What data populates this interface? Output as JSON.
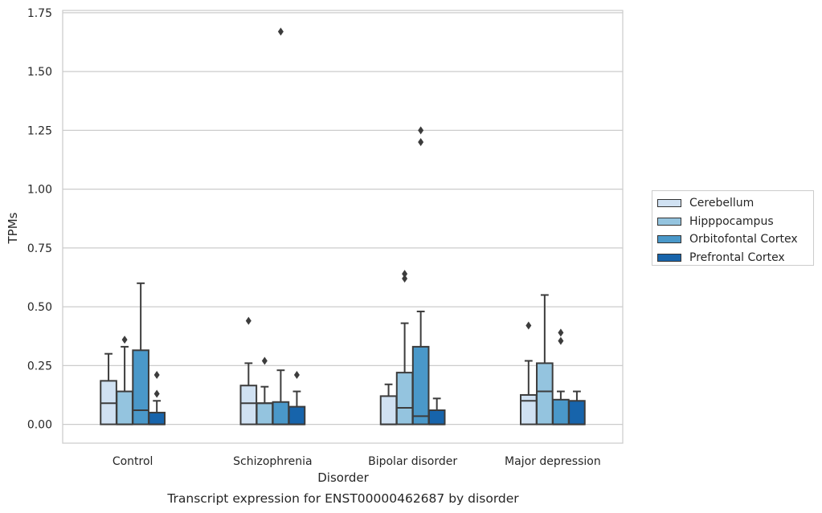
{
  "chart_data": {
    "type": "box",
    "title": "Transcript expression for ENST00000462687 by disorder",
    "xlabel": "Disorder",
    "ylabel": "TPMs",
    "ylim": [
      -0.08,
      1.76
    ],
    "yticks": [
      "0.00",
      "0.25",
      "0.50",
      "0.75",
      "1.00",
      "1.25",
      "1.50",
      "1.75"
    ],
    "grid": true,
    "legend_position": "right",
    "categories": [
      "Control",
      "Schizophrenia",
      "Bipolar disorder",
      "Major depression"
    ],
    "series": [
      {
        "name": "Cerebellum",
        "color": "#d0e1f2",
        "boxes": [
          {
            "whislo": 0.0,
            "q1": 0.0,
            "med": 0.09,
            "q3": 0.185,
            "whishi": 0.3,
            "fliers": []
          },
          {
            "whislo": 0.0,
            "q1": 0.0,
            "med": 0.09,
            "q3": 0.165,
            "whishi": 0.26,
            "fliers": [
              0.44
            ]
          },
          {
            "whislo": 0.0,
            "q1": 0.0,
            "med": 0.0,
            "q3": 0.12,
            "whishi": 0.17,
            "fliers": []
          },
          {
            "whislo": 0.0,
            "q1": 0.0,
            "med": 0.1,
            "q3": 0.125,
            "whishi": 0.27,
            "fliers": [
              0.42
            ]
          }
        ]
      },
      {
        "name": "Hipppocampus",
        "color": "#94c4df",
        "boxes": [
          {
            "whislo": 0.0,
            "q1": 0.0,
            "med": 0.0,
            "q3": 0.14,
            "whishi": 0.33,
            "fliers": [
              0.36
            ]
          },
          {
            "whislo": 0.0,
            "q1": 0.0,
            "med": 0.09,
            "q3": 0.09,
            "whishi": 0.16,
            "fliers": [
              0.27
            ]
          },
          {
            "whislo": 0.0,
            "q1": 0.0,
            "med": 0.07,
            "q3": 0.22,
            "whishi": 0.43,
            "fliers": [
              0.62,
              0.64
            ]
          },
          {
            "whislo": 0.0,
            "q1": 0.0,
            "med": 0.14,
            "q3": 0.26,
            "whishi": 0.55,
            "fliers": []
          }
        ]
      },
      {
        "name": "Orbitofontal Cortex",
        "color": "#4a98c9",
        "boxes": [
          {
            "whislo": 0.0,
            "q1": 0.0,
            "med": 0.06,
            "q3": 0.315,
            "whishi": 0.6,
            "fliers": []
          },
          {
            "whislo": 0.0,
            "q1": 0.0,
            "med": 0.0,
            "q3": 0.095,
            "whishi": 0.23,
            "fliers": [
              1.67
            ]
          },
          {
            "whislo": 0.0,
            "q1": 0.0,
            "med": 0.035,
            "q3": 0.33,
            "whishi": 0.48,
            "fliers": [
              1.2,
              1.25
            ]
          },
          {
            "whislo": 0.0,
            "q1": 0.0,
            "med": 0.0,
            "q3": 0.105,
            "whishi": 0.14,
            "fliers": [
              0.355,
              0.39
            ]
          }
        ]
      },
      {
        "name": "Prefrontal Cortex",
        "color": "#1764ab",
        "boxes": [
          {
            "whislo": 0.0,
            "q1": 0.0,
            "med": 0.0,
            "q3": 0.05,
            "whishi": 0.1,
            "fliers": [
              0.13,
              0.21
            ]
          },
          {
            "whislo": 0.0,
            "q1": 0.0,
            "med": 0.0,
            "q3": 0.075,
            "whishi": 0.14,
            "fliers": [
              0.21
            ]
          },
          {
            "whislo": 0.0,
            "q1": 0.0,
            "med": 0.0,
            "q3": 0.06,
            "whishi": 0.11,
            "fliers": []
          },
          {
            "whislo": 0.0,
            "q1": 0.0,
            "med": 0.0,
            "q3": 0.1,
            "whishi": 0.14,
            "fliers": []
          }
        ]
      }
    ]
  }
}
